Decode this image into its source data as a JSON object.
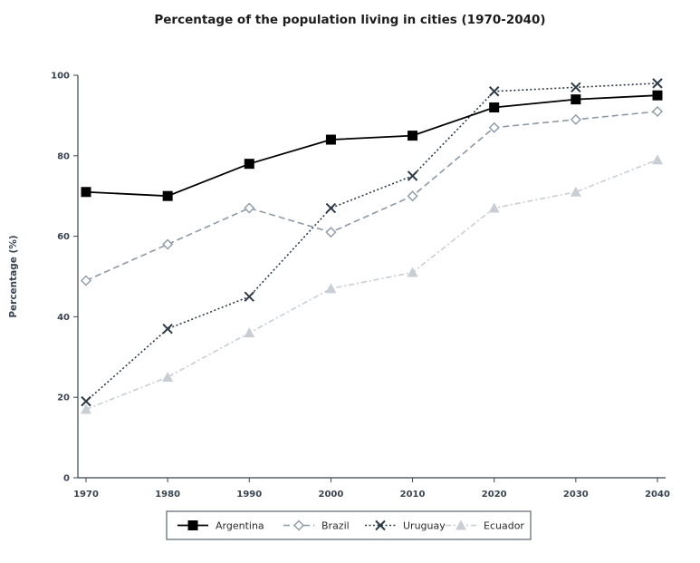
{
  "chart_data": {
    "type": "line",
    "title": "Percentage of the population living in cities (1970-2040)",
    "xlabel": "",
    "ylabel": "Percentage (%)",
    "x": [
      "1970",
      "1980",
      "1990",
      "2000",
      "2010",
      "2020",
      "2030",
      "2040"
    ],
    "ylim": [
      0,
      100
    ],
    "yticks": [
      0,
      20,
      40,
      60,
      80,
      100
    ],
    "grid": false,
    "legend_position": "bottom",
    "series": [
      {
        "name": "Argentina",
        "values": [
          71,
          70,
          78,
          84,
          85,
          92,
          94,
          95
        ],
        "color": "#000000",
        "dash": "solid",
        "marker": "filled-square"
      },
      {
        "name": "Brazil",
        "values": [
          49,
          58,
          67,
          61,
          70,
          87,
          89,
          91
        ],
        "color": "#8d99a6",
        "dash": "dashed",
        "marker": "hollow-diamond"
      },
      {
        "name": "Uruguay",
        "values": [
          19,
          37,
          45,
          67,
          75,
          96,
          97,
          98
        ],
        "color": "#2f3a47",
        "dash": "dotted",
        "marker": "x"
      },
      {
        "name": "Ecuador",
        "values": [
          17,
          25,
          36,
          47,
          51,
          67,
          71,
          79
        ],
        "color": "#c9ced4",
        "dash": "dash-dot",
        "marker": "filled-triangle"
      }
    ]
  }
}
